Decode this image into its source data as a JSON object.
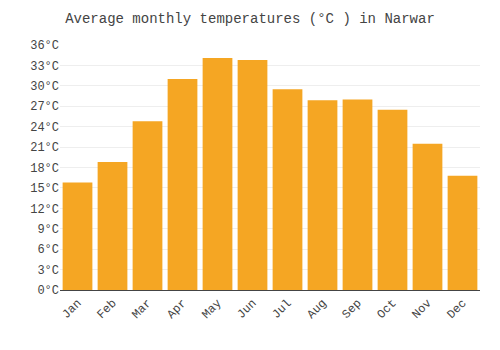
{
  "chart_data": {
    "type": "bar",
    "title": "Average monthly temperatures (°C ) in Narwar",
    "categories": [
      "Jan",
      "Feb",
      "Mar",
      "Apr",
      "May",
      "Jun",
      "Jul",
      "Aug",
      "Sep",
      "Oct",
      "Nov",
      "Dec"
    ],
    "values": [
      15.8,
      18.8,
      24.8,
      31.0,
      34.1,
      33.8,
      29.5,
      27.9,
      28.0,
      26.5,
      21.5,
      16.8
    ],
    "color": "#F5A623",
    "ylim": [
      0,
      36
    ],
    "yticks": [
      {
        "value": 0,
        "label": "0°C"
      },
      {
        "value": 3,
        "label": "3°C"
      },
      {
        "value": 6,
        "label": "6°C"
      },
      {
        "value": 9,
        "label": "9°C"
      },
      {
        "value": 12,
        "label": "12°C"
      },
      {
        "value": 15,
        "label": "15°C"
      },
      {
        "value": 18,
        "label": "18°C"
      },
      {
        "value": 21,
        "label": "21°C"
      },
      {
        "value": 24,
        "label": "24°C"
      },
      {
        "value": 27,
        "label": "27°C"
      },
      {
        "value": 30,
        "label": "30°C"
      },
      {
        "value": 33,
        "label": "33°C"
      },
      {
        "value": 36,
        "label": "36°C"
      }
    ],
    "grid": true
  }
}
